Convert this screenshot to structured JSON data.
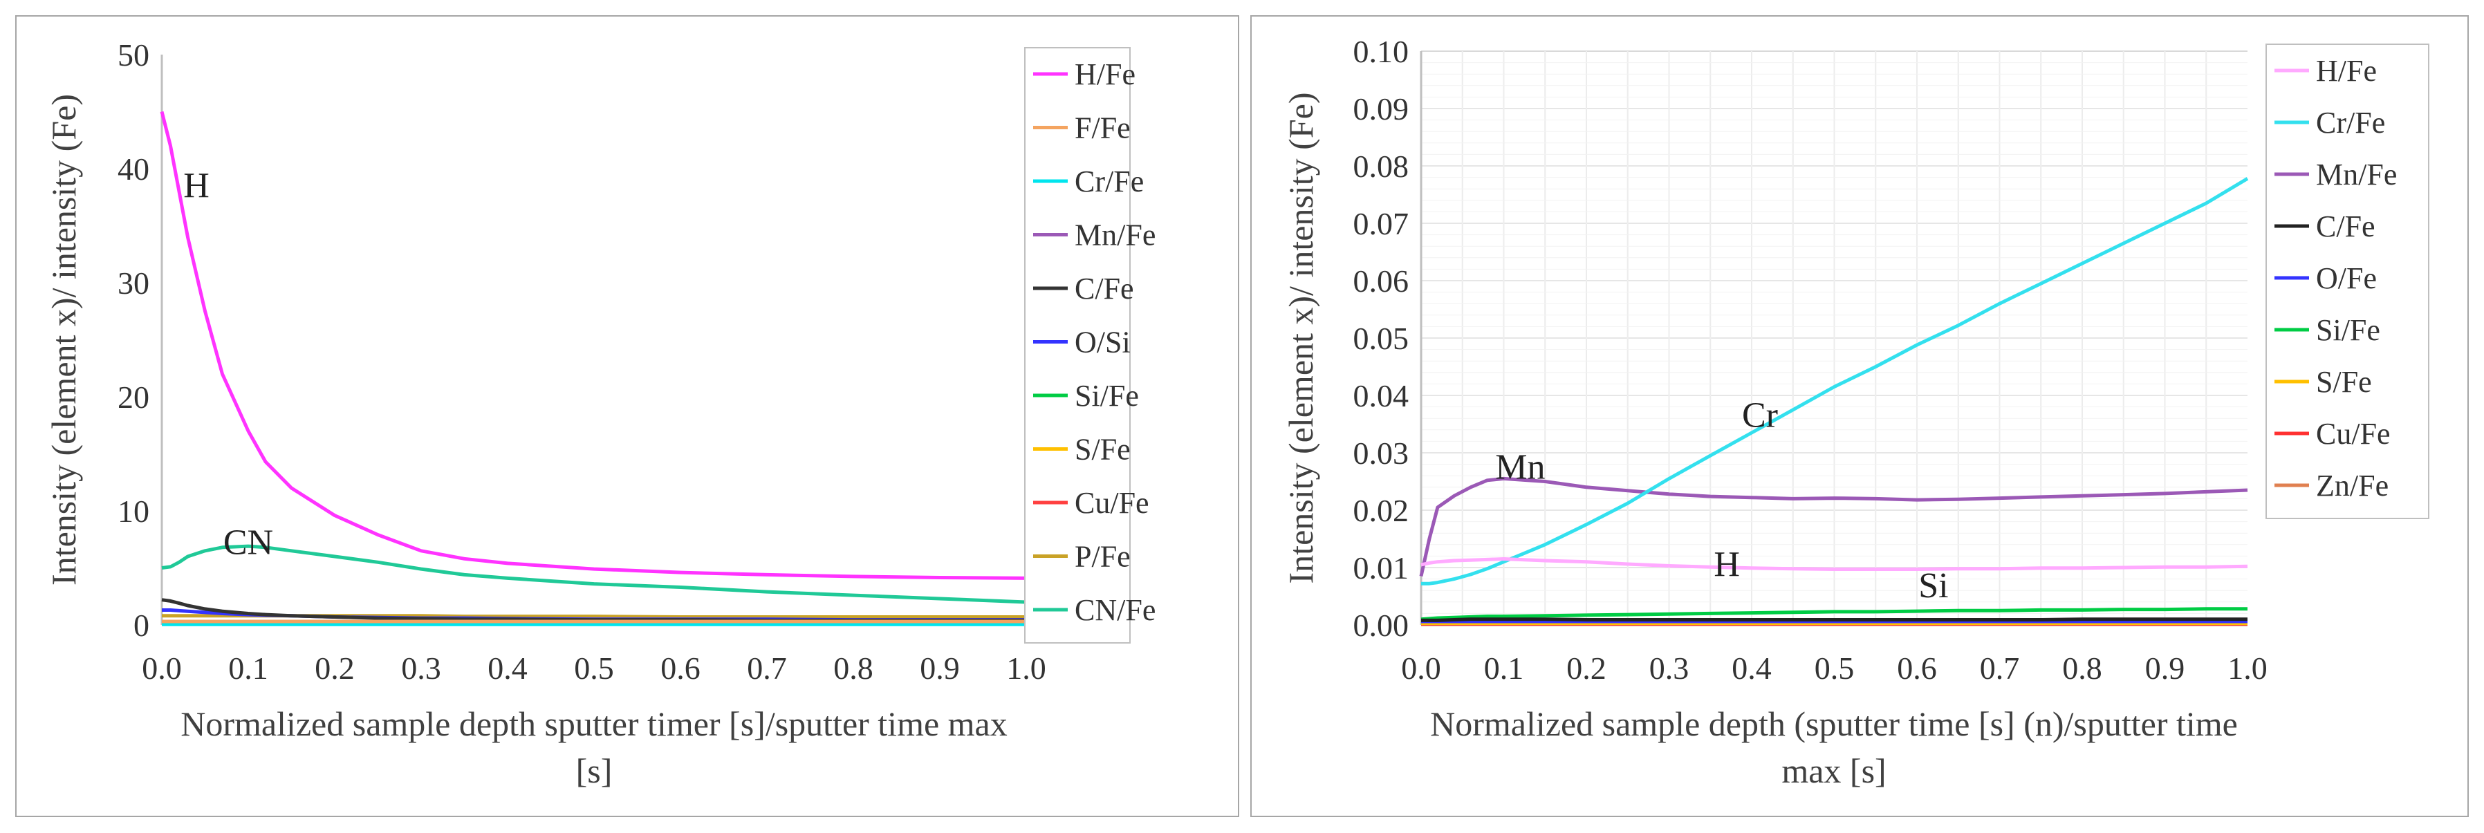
{
  "chart_data": [
    {
      "type": "line",
      "title": "",
      "xlabel": "Normalized sample depth sputter timer [s]/sputter time max [s]",
      "xlabel_lines": [
        "Normalized sample depth sputter timer [s]/sputter time max",
        "[s]"
      ],
      "ylabel": "Intensity (element x)/ intensity (Fe)",
      "xlim": [
        0,
        1
      ],
      "ylim": [
        0,
        50
      ],
      "x_ticks": [
        "0.0",
        "0.1",
        "0.2",
        "0.3",
        "0.4",
        "0.5",
        "0.6",
        "0.7",
        "0.8",
        "0.9",
        "1.0"
      ],
      "y_ticks": [
        "0",
        "10",
        "20",
        "30",
        "40",
        "50"
      ],
      "grid": false,
      "legend_position": "right",
      "x": [
        0,
        0.01,
        0.02,
        0.03,
        0.05,
        0.07,
        0.1,
        0.12,
        0.15,
        0.2,
        0.25,
        0.3,
        0.35,
        0.4,
        0.5,
        0.6,
        0.7,
        0.8,
        0.9,
        1.0
      ],
      "series": [
        {
          "name": "H/Fe",
          "color": "#ff33ff",
          "values": [
            45,
            42,
            38,
            34,
            27.5,
            22,
            17,
            14.3,
            12,
            9.6,
            7.9,
            6.5,
            5.8,
            5.4,
            4.9,
            4.6,
            4.4,
            4.25,
            4.15,
            4.1
          ]
        },
        {
          "name": "F/Fe",
          "color": "#f4a460",
          "values": [
            0.3,
            0.3,
            0.3,
            0.3,
            0.3,
            0.3,
            0.3,
            0.3,
            0.3,
            0.3,
            0.3,
            0.3,
            0.3,
            0.3,
            0.3,
            0.3,
            0.3,
            0.3,
            0.3,
            0.3
          ]
        },
        {
          "name": "Cr/Fe",
          "color": "#00e5ee",
          "values": [
            0.05,
            0.05,
            0.05,
            0.05,
            0.05,
            0.05,
            0.05,
            0.05,
            0.05,
            0.05,
            0.05,
            0.05,
            0.05,
            0.05,
            0.05,
            0.05,
            0.05,
            0.05,
            0.05,
            0.05
          ]
        },
        {
          "name": "Mn/Fe",
          "color": "#9b59b6",
          "values": [
            0.1,
            0.1,
            0.1,
            0.1,
            0.1,
            0.1,
            0.1,
            0.1,
            0.1,
            0.1,
            0.1,
            0.1,
            0.1,
            0.1,
            0.1,
            0.1,
            0.1,
            0.1,
            0.1,
            0.1
          ]
        },
        {
          "name": "C/Fe",
          "color": "#333333",
          "values": [
            2.2,
            2.1,
            1.9,
            1.7,
            1.4,
            1.2,
            1.0,
            0.9,
            0.8,
            0.7,
            0.6,
            0.55,
            0.5,
            0.5,
            0.45,
            0.45,
            0.4,
            0.4,
            0.4,
            0.4
          ]
        },
        {
          "name": "O/Si",
          "color": "#3333ff",
          "values": [
            1.3,
            1.3,
            1.25,
            1.2,
            1.1,
            1.0,
            0.9,
            0.85,
            0.8,
            0.7,
            0.65,
            0.6,
            0.6,
            0.55,
            0.5,
            0.5,
            0.5,
            0.45,
            0.45,
            0.45
          ]
        },
        {
          "name": "Si/Fe",
          "color": "#00cc44",
          "values": [
            0.2,
            0.2,
            0.2,
            0.2,
            0.2,
            0.2,
            0.2,
            0.2,
            0.2,
            0.2,
            0.2,
            0.2,
            0.2,
            0.2,
            0.2,
            0.2,
            0.2,
            0.2,
            0.2,
            0.2
          ]
        },
        {
          "name": "S/Fe",
          "color": "#ffc000",
          "values": [
            0.15,
            0.15,
            0.15,
            0.15,
            0.15,
            0.15,
            0.15,
            0.15,
            0.15,
            0.15,
            0.15,
            0.15,
            0.15,
            0.15,
            0.15,
            0.15,
            0.15,
            0.15,
            0.15,
            0.15
          ]
        },
        {
          "name": "Cu/Fe",
          "color": "#ff4040",
          "values": [
            0.1,
            0.1,
            0.1,
            0.1,
            0.1,
            0.1,
            0.1,
            0.1,
            0.1,
            0.1,
            0.1,
            0.1,
            0.1,
            0.1,
            0.1,
            0.1,
            0.1,
            0.1,
            0.1,
            0.1
          ]
        },
        {
          "name": "P/Fe",
          "color": "#c9a227",
          "values": [
            0.8,
            0.8,
            0.8,
            0.8,
            0.8,
            0.8,
            0.8,
            0.8,
            0.8,
            0.8,
            0.8,
            0.8,
            0.75,
            0.75,
            0.75,
            0.7,
            0.7,
            0.7,
            0.7,
            0.7
          ]
        },
        {
          "name": "CN/Fe",
          "color": "#20c997",
          "values": [
            5.0,
            5.1,
            5.5,
            6.0,
            6.5,
            6.8,
            6.9,
            6.8,
            6.5,
            6.0,
            5.5,
            4.9,
            4.4,
            4.1,
            3.6,
            3.3,
            2.9,
            2.6,
            2.3,
            2.0
          ]
        }
      ],
      "annotations": [
        {
          "text": "H",
          "x": 0.04,
          "y": 37.5
        },
        {
          "text": "CN",
          "x": 0.1,
          "y": 6.2
        }
      ]
    },
    {
      "type": "line",
      "title": "",
      "xlabel": "Normalized sample depth (sputter time [s] (n)/sputter time max [s]",
      "xlabel_lines": [
        "Normalized sample depth (sputter time [s] (n)/sputter time",
        "max [s]"
      ],
      "ylabel": "Intensity (element x)/ intensity (Fe)",
      "xlim": [
        0,
        1
      ],
      "ylim": [
        0,
        0.1
      ],
      "x_ticks": [
        "0.0",
        "0.1",
        "0.2",
        "0.3",
        "0.4",
        "0.5",
        "0.6",
        "0.7",
        "0.8",
        "0.9",
        "1.0"
      ],
      "y_ticks": [
        "0.00",
        "0.01",
        "0.02",
        "0.03",
        "0.04",
        "0.05",
        "0.06",
        "0.07",
        "0.08",
        "0.09",
        "0.10"
      ],
      "grid": true,
      "legend_position": "right",
      "x": [
        0,
        0.01,
        0.02,
        0.04,
        0.06,
        0.08,
        0.1,
        0.15,
        0.2,
        0.25,
        0.3,
        0.35,
        0.4,
        0.45,
        0.5,
        0.55,
        0.6,
        0.65,
        0.7,
        0.75,
        0.8,
        0.85,
        0.9,
        0.95,
        1.0
      ],
      "series": [
        {
          "name": "H/Fe",
          "color": "#ffaaff",
          "values": [
            0.0105,
            0.0108,
            0.011,
            0.0112,
            0.0113,
            0.0114,
            0.0115,
            0.0112,
            0.011,
            0.0106,
            0.0103,
            0.0101,
            0.0099,
            0.0098,
            0.0097,
            0.0097,
            0.0097,
            0.0098,
            0.0098,
            0.0099,
            0.0099,
            0.01,
            0.0101,
            0.0101,
            0.0102
          ]
        },
        {
          "name": "Cr/Fe",
          "color": "#33e0ee",
          "values": [
            0.0072,
            0.0072,
            0.0074,
            0.008,
            0.0088,
            0.0098,
            0.011,
            0.014,
            0.0175,
            0.0212,
            0.0255,
            0.0295,
            0.0335,
            0.0375,
            0.0415,
            0.045,
            0.0488,
            0.0522,
            0.056,
            0.0595,
            0.063,
            0.0665,
            0.07,
            0.0735,
            0.0778
          ]
        },
        {
          "name": "Mn/Fe",
          "color": "#9b59b6",
          "values": [
            0.0085,
            0.015,
            0.0205,
            0.0225,
            0.024,
            0.0252,
            0.0255,
            0.025,
            0.024,
            0.0234,
            0.0228,
            0.0224,
            0.0222,
            0.022,
            0.0221,
            0.022,
            0.0218,
            0.0219,
            0.0221,
            0.0223,
            0.0225,
            0.0227,
            0.0229,
            0.0232,
            0.0235
          ]
        },
        {
          "name": "C/Fe",
          "color": "#222222",
          "values": [
            0.0008,
            0.0008,
            0.0008,
            0.0009,
            0.001,
            0.001,
            0.001,
            0.001,
            0.0009,
            0.0009,
            0.0009,
            0.0009,
            0.0009,
            0.0009,
            0.0009,
            0.0009,
            0.0009,
            0.0009,
            0.0009,
            0.0009,
            0.001,
            0.001,
            0.001,
            0.001,
            0.001
          ]
        },
        {
          "name": "O/Fe",
          "color": "#3333ff",
          "values": [
            0.0006,
            0.0006,
            0.0006,
            0.0006,
            0.0006,
            0.0006,
            0.0006,
            0.0006,
            0.0006,
            0.0006,
            0.0006,
            0.0006,
            0.0006,
            0.0006,
            0.0006,
            0.0006,
            0.0006,
            0.0006,
            0.0006,
            0.0006,
            0.0006,
            0.0006,
            0.0006,
            0.0006,
            0.0006
          ]
        },
        {
          "name": "Si/Fe",
          "color": "#00cc44",
          "values": [
            0.001,
            0.0011,
            0.0012,
            0.0013,
            0.0014,
            0.0015,
            0.0015,
            0.0016,
            0.0017,
            0.0018,
            0.0019,
            0.002,
            0.0021,
            0.0022,
            0.0023,
            0.0023,
            0.0024,
            0.0025,
            0.0025,
            0.0026,
            0.0026,
            0.0027,
            0.0027,
            0.0028,
            0.0028
          ]
        },
        {
          "name": "S/Fe",
          "color": "#ffc000",
          "values": [
            0.0003,
            0.0003,
            0.0003,
            0.0003,
            0.0003,
            0.0003,
            0.0003,
            0.0003,
            0.0003,
            0.0003,
            0.0003,
            0.0003,
            0.0003,
            0.0003,
            0.0003,
            0.0003,
            0.0003,
            0.0003,
            0.0003,
            0.0003,
            0.0003,
            0.0003,
            0.0003,
            0.0003,
            0.0003
          ]
        },
        {
          "name": "Cu/Fe",
          "color": "#ff3030",
          "values": [
            0.0002,
            0.0002,
            0.0002,
            0.0002,
            0.0002,
            0.0002,
            0.0002,
            0.0002,
            0.0002,
            0.0002,
            0.0002,
            0.0002,
            0.0002,
            0.0002,
            0.0002,
            0.0002,
            0.0002,
            0.0002,
            0.0002,
            0.0002,
            0.0002,
            0.0002,
            0.0002,
            0.0002,
            0.0002
          ]
        },
        {
          "name": "Zn/Fe",
          "color": "#e08050",
          "values": [
            0.0001,
            0.0001,
            0.0001,
            0.0001,
            0.0001,
            0.0001,
            0.0001,
            0.0001,
            0.0001,
            0.0001,
            0.0001,
            0.0001,
            0.0001,
            0.0001,
            0.0001,
            0.0001,
            0.0001,
            0.0001,
            0.0001,
            0.0001,
            0.0001,
            0.0001,
            0.0001,
            0.0001,
            0.0001
          ]
        }
      ],
      "annotations": [
        {
          "text": "Cr",
          "x": 0.41,
          "y": 0.0345
        },
        {
          "text": "Mn",
          "x": 0.12,
          "y": 0.0255
        },
        {
          "text": "H",
          "x": 0.37,
          "y": 0.0085
        },
        {
          "text": "Si",
          "x": 0.62,
          "y": 0.0048
        }
      ]
    }
  ]
}
